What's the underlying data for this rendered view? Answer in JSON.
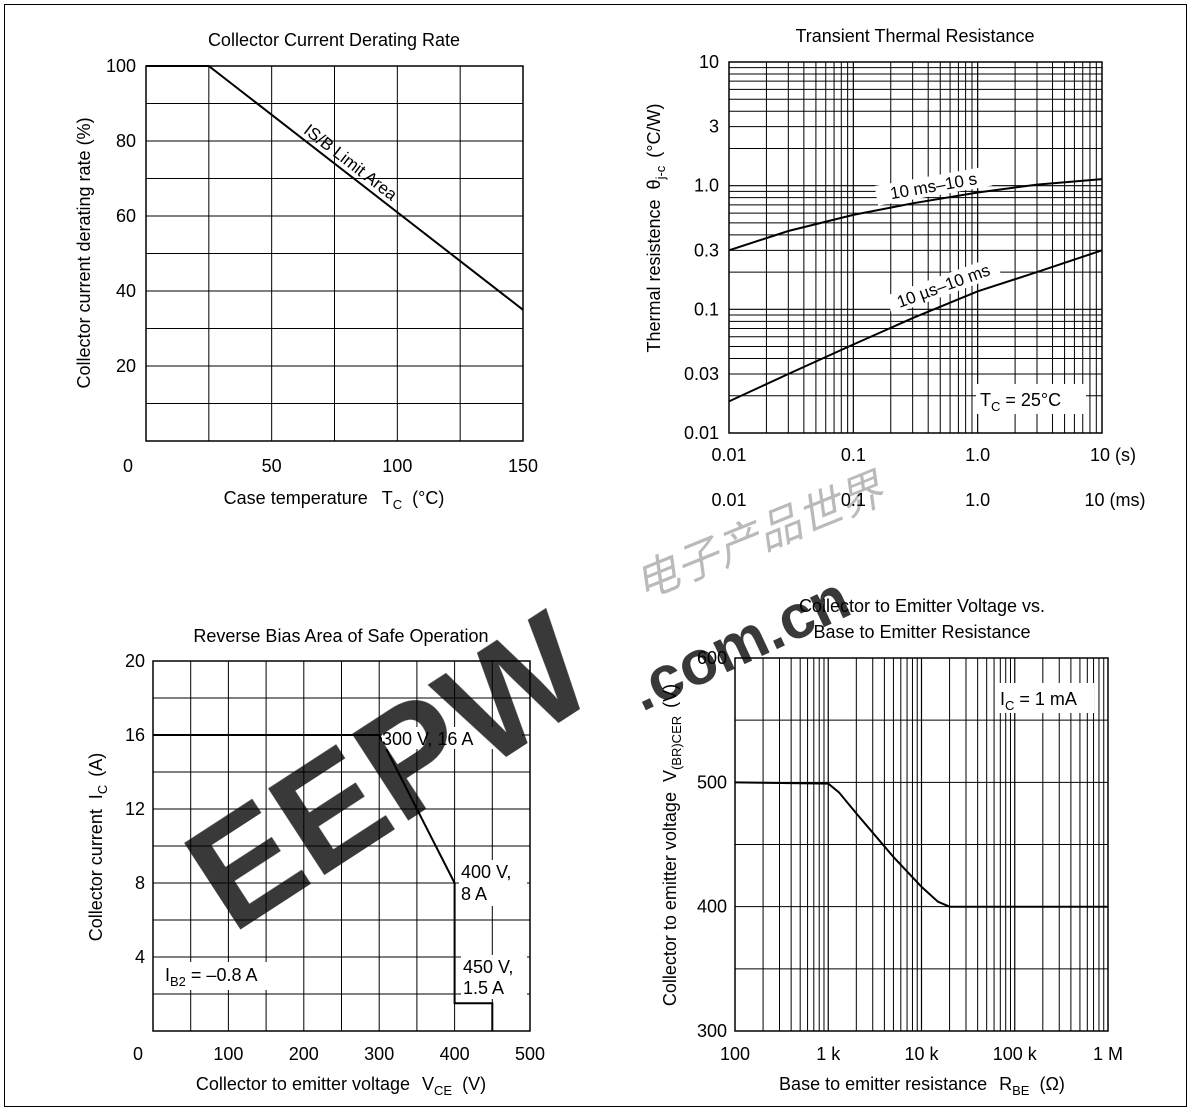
{
  "chart_data": [
    {
      "type": "line",
      "title": "Collector Current Derating Rate",
      "xlabel": "Case temperature",
      "xlabel_symbol": "T",
      "xlabel_sub": "C",
      "xlabel_unit": "(°C)",
      "ylabel": "Collector current derating rate  (%)",
      "xlim": [
        0,
        150
      ],
      "ylim": [
        0,
        100
      ],
      "x_ticks": [
        "0",
        "50",
        "100",
        "150"
      ],
      "y_ticks": [
        "20",
        "40",
        "60",
        "80",
        "100"
      ],
      "grid": true,
      "series": [
        {
          "name": "IS/B Limit Area",
          "x": [
            0,
            25,
            150
          ],
          "y": [
            100,
            100,
            35
          ]
        }
      ],
      "annotations": [
        "IS/B Limit Area"
      ]
    },
    {
      "type": "line",
      "title": "Transient Thermal Resistance",
      "xlabel_top_axis": [
        "0.01",
        "0.1",
        "1.0",
        "10 (s)"
      ],
      "xlabel_bottom_axis": [
        "0.01",
        "0.1",
        "1.0",
        "10 (ms)"
      ],
      "ylabel": "Thermal resistence",
      "ylabel_symbol": "θ",
      "ylabel_sub": "j-c",
      "ylabel_unit": "(°C/W)",
      "x_scale": "log",
      "y_scale": "log",
      "xlim": [
        0.01,
        10
      ],
      "ylim": [
        0.01,
        10
      ],
      "y_ticks": [
        "0.01",
        "0.03",
        "0.1",
        "0.3",
        "1.0",
        "3",
        "10"
      ],
      "grid": true,
      "series": [
        {
          "name": "10 ms–10 s",
          "x": [
            0.01,
            0.03,
            0.1,
            0.3,
            1.0,
            3,
            10
          ],
          "y": [
            0.3,
            0.43,
            0.58,
            0.72,
            0.88,
            1.02,
            1.13
          ]
        },
        {
          "name": "10 µs–10 ms",
          "x": [
            0.01,
            0.03,
            0.1,
            0.3,
            1.0,
            3,
            10
          ],
          "y": [
            0.018,
            0.03,
            0.052,
            0.085,
            0.14,
            0.2,
            0.3
          ]
        }
      ],
      "annotations": [
        "T_C = 25°C"
      ],
      "annotation_parts": {
        "symbol": "T",
        "sub": "C",
        "rest": " = 25°C"
      }
    },
    {
      "type": "line",
      "title": "Reverse Bias Area of Safe Operation",
      "xlabel": "Collector to emitter voltage",
      "xlabel_symbol": "V",
      "xlabel_sub": "CE",
      "xlabel_unit": "(V)",
      "ylabel": "Collector current",
      "ylabel_symbol": "I",
      "ylabel_sub": "C",
      "ylabel_unit": "(A)",
      "xlim": [
        0,
        500
      ],
      "ylim": [
        0,
        20
      ],
      "x_ticks": [
        "0",
        "100",
        "200",
        "300",
        "400",
        "500"
      ],
      "y_ticks": [
        "4",
        "8",
        "12",
        "16",
        "20"
      ],
      "grid": true,
      "series": [
        {
          "name": "RBSOA",
          "x": [
            0,
            300,
            400,
            400,
            450,
            450
          ],
          "y": [
            16,
            16,
            8,
            1.5,
            1.5,
            0
          ]
        }
      ],
      "annotations": [
        "300 V, 16 A",
        "400 V,",
        "8 A",
        "450 V,",
        "1.5 A",
        "I_B2 = –0.8 A"
      ],
      "annotation_parts": {
        "symbol": "I",
        "sub": "B2",
        "rest": " = –0.8 A"
      }
    },
    {
      "type": "line",
      "title": "Collector to Emitter Voltage vs.",
      "title_line2": "Base to Emitter Resistance",
      "xlabel": "Base to emitter resistance",
      "xlabel_symbol": "R",
      "xlabel_sub": "BE",
      "xlabel_unit": "(Ω)",
      "ylabel": "Collector to emitter voltage",
      "ylabel_symbol": "V",
      "ylabel_sub": "(BR)CER",
      "ylabel_unit": "(V)",
      "x_scale": "log",
      "xlim": [
        100,
        1000000
      ],
      "ylim": [
        300,
        600
      ],
      "x_ticks": [
        "100",
        "1 k",
        "10 k",
        "100 k",
        "1 M"
      ],
      "y_ticks": [
        "300",
        "400",
        "500",
        "600"
      ],
      "grid": true,
      "series": [
        {
          "name": "V(BR)CER",
          "x": [
            100,
            1000,
            1300,
            2000,
            5000,
            10000,
            15000,
            20000,
            1000000
          ],
          "y": [
            500,
            499,
            492,
            475,
            440,
            416,
            404,
            400,
            400
          ]
        }
      ],
      "annotations": [
        "I_C = 1 mA"
      ],
      "annotation_parts": {
        "symbol": "I",
        "sub": "C",
        "rest": " = 1 mA"
      }
    }
  ],
  "watermark": {
    "brand": "EEPW",
    "domain": ".com.cn",
    "chinese": "电子产品世界",
    "color": "#e8262a"
  }
}
